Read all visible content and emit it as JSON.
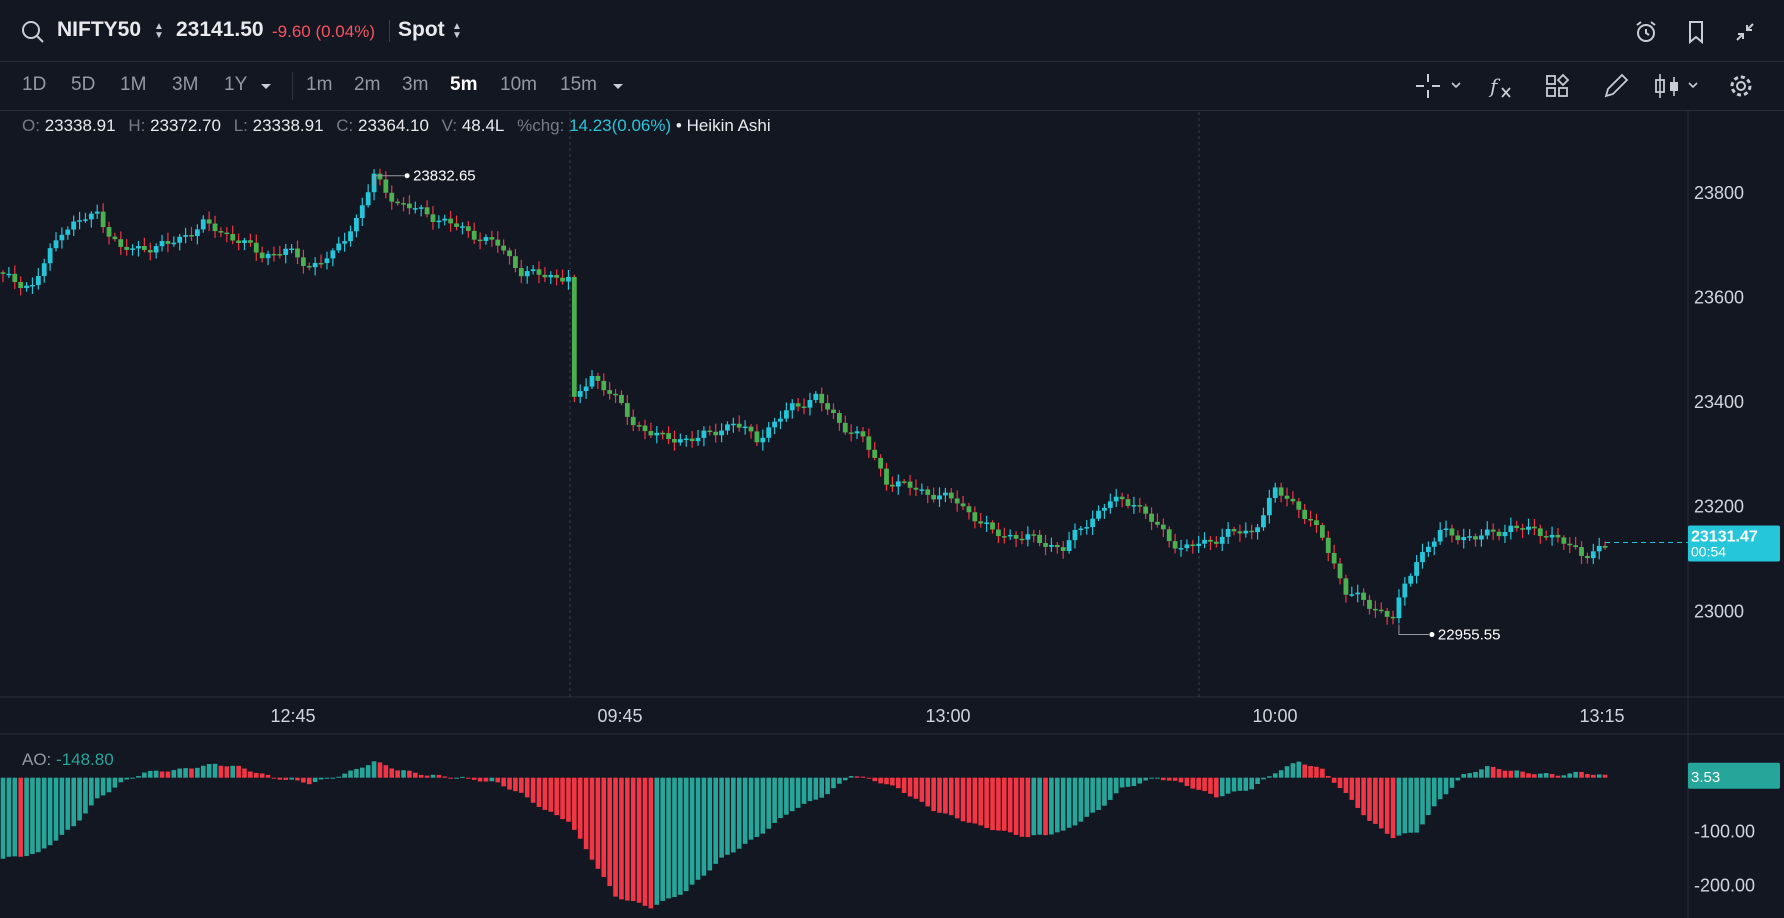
{
  "header": {
    "symbol": "NIFTY50",
    "price": "23141.50",
    "change": "-9.60 (0.04%)",
    "market": "Spot",
    "icons": [
      "search-icon",
      "alarm-clock-icon",
      "bookmark-icon",
      "collapse-icon"
    ]
  },
  "toolbar": {
    "ranges": [
      "1D",
      "5D",
      "1M",
      "3M",
      "1Y"
    ],
    "intervals": [
      "1m",
      "2m",
      "3m",
      "5m",
      "10m",
      "15m"
    ],
    "active_interval": "5m",
    "icons": [
      "crosshair-icon",
      "indicator-fx-icon",
      "templates-icon",
      "draw-icon",
      "chart-type-icon",
      "settings-icon"
    ]
  },
  "legend": {
    "o_label": "O:",
    "o": "23338.91",
    "h_label": "H:",
    "h": "23372.70",
    "l_label": "L:",
    "l": "23338.91",
    "c_label": "C:",
    "c": "23364.10",
    "v_label": "V:",
    "v": "48.4L",
    "pct_label": "%chg:",
    "pct": "14.23(0.06%)",
    "type": "• Heikin Ashi"
  },
  "indicator": {
    "label": "AO:",
    "value": "-148.80",
    "last_badge": "3.53",
    "ticks": [
      "-100.00",
      "-200.00"
    ]
  },
  "colors": {
    "bg": "#131722",
    "up": "#26c6da",
    "down": "#4caf50",
    "wick_down": "#f23645",
    "ao_up": "#26a69a",
    "ao_down": "#f23645",
    "badge": "#26c6da",
    "text": "#d1d4dc",
    "muted": "#9598a1"
  },
  "chart_data": [
    {
      "type": "candlestick",
      "subtype": "Heikin Ashi",
      "x_ticks": [
        "12:45",
        "09:45",
        "13:00",
        "10:00",
        "13:15"
      ],
      "y_ticks": [
        23000,
        23200,
        23400,
        23600,
        23800
      ],
      "ylim": [
        22840,
        23920
      ],
      "annotations": [
        {
          "label": "23832.65",
          "value": 23832.65
        },
        {
          "label": "22955.55",
          "value": 22955.55
        }
      ],
      "last_price": {
        "value": 23131.47,
        "label": "23131.47",
        "countdown": "00:54"
      },
      "session_breaks_after_ticks": [
        "12:45",
        "13:00"
      ],
      "waypoints": [
        [
          0,
          23640
        ],
        [
          5,
          23620
        ],
        [
          10,
          23730
        ],
        [
          16,
          23760
        ],
        [
          20,
          23690
        ],
        [
          28,
          23700
        ],
        [
          34,
          23740
        ],
        [
          40,
          23710
        ],
        [
          44,
          23680
        ],
        [
          48,
          23690
        ],
        [
          52,
          23660
        ],
        [
          56,
          23680
        ],
        [
          60,
          23750
        ],
        [
          63,
          23830
        ],
        [
          67,
          23780
        ],
        [
          72,
          23760
        ],
        [
          78,
          23730
        ],
        [
          84,
          23700
        ],
        [
          88,
          23650
        ],
        [
          92,
          23640
        ],
        [
          96,
          23640
        ],
        [
          97,
          23400
        ],
        [
          100,
          23450
        ],
        [
          103,
          23420
        ],
        [
          107,
          23360
        ],
        [
          112,
          23330
        ],
        [
          118,
          23330
        ],
        [
          124,
          23360
        ],
        [
          128,
          23330
        ],
        [
          134,
          23390
        ],
        [
          138,
          23410
        ],
        [
          142,
          23360
        ],
        [
          146,
          23330
        ],
        [
          150,
          23250
        ],
        [
          156,
          23230
        ],
        [
          162,
          23210
        ],
        [
          168,
          23150
        ],
        [
          174,
          23140
        ],
        [
          180,
          23120
        ],
        [
          184,
          23170
        ],
        [
          188,
          23210
        ],
        [
          192,
          23210
        ],
        [
          196,
          23160
        ],
        [
          200,
          23120
        ],
        [
          204,
          23130
        ],
        [
          208,
          23150
        ],
        [
          212,
          23150
        ],
        [
          216,
          23230
        ],
        [
          220,
          23200
        ],
        [
          224,
          23140
        ],
        [
          228,
          23040
        ],
        [
          232,
          23010
        ],
        [
          236,
          22990
        ],
        [
          240,
          23100
        ],
        [
          244,
          23150
        ],
        [
          250,
          23140
        ],
        [
          256,
          23160
        ],
        [
          262,
          23150
        ],
        [
          268,
          23110
        ],
        [
          272,
          23120
        ]
      ]
    },
    {
      "type": "bar",
      "name": "AO",
      "yticks": [
        -100,
        -200
      ],
      "ylim": [
        -245,
        55
      ],
      "waypoints": [
        [
          0,
          -150
        ],
        [
          6,
          -140
        ],
        [
          12,
          -90
        ],
        [
          16,
          -40
        ],
        [
          20,
          -10
        ],
        [
          24,
          10
        ],
        [
          30,
          15
        ],
        [
          36,
          25
        ],
        [
          40,
          20
        ],
        [
          46,
          0
        ],
        [
          52,
          -10
        ],
        [
          56,
          0
        ],
        [
          60,
          15
        ],
        [
          63,
          30
        ],
        [
          67,
          15
        ],
        [
          72,
          5
        ],
        [
          78,
          0
        ],
        [
          84,
          -10
        ],
        [
          88,
          -30
        ],
        [
          92,
          -60
        ],
        [
          96,
          -80
        ],
        [
          100,
          -150
        ],
        [
          104,
          -220
        ],
        [
          110,
          -240
        ],
        [
          116,
          -210
        ],
        [
          122,
          -150
        ],
        [
          128,
          -110
        ],
        [
          134,
          -60
        ],
        [
          140,
          -30
        ],
        [
          144,
          5
        ],
        [
          148,
          -5
        ],
        [
          152,
          -20
        ],
        [
          158,
          -60
        ],
        [
          166,
          -90
        ],
        [
          174,
          -110
        ],
        [
          180,
          -100
        ],
        [
          186,
          -60
        ],
        [
          190,
          -20
        ],
        [
          196,
          0
        ],
        [
          200,
          -10
        ],
        [
          206,
          -35
        ],
        [
          212,
          -20
        ],
        [
          216,
          10
        ],
        [
          220,
          30
        ],
        [
          224,
          15
        ],
        [
          228,
          -30
        ],
        [
          232,
          -80
        ],
        [
          236,
          -110
        ],
        [
          240,
          -100
        ],
        [
          244,
          -40
        ],
        [
          248,
          5
        ],
        [
          252,
          20
        ],
        [
          258,
          10
        ],
        [
          264,
          5
        ],
        [
          268,
          10
        ],
        [
          272,
          3.53
        ]
      ]
    }
  ]
}
